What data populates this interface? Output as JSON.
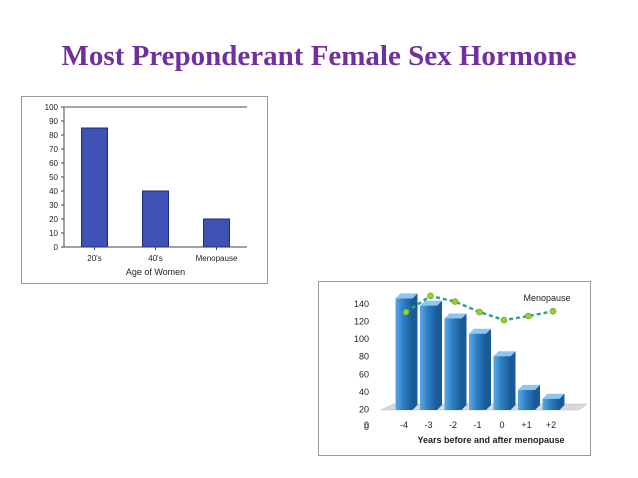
{
  "slide": {
    "title": "Most Preponderant Female Sex Hormone"
  },
  "chart_data": [
    {
      "type": "bar",
      "categories": [
        "20's",
        "40's",
        "Menopause"
      ],
      "values": [
        85,
        40,
        20
      ],
      "title": "",
      "xlabel": "Age of Women",
      "ylabel": "",
      "ylim": [
        0,
        100
      ],
      "yticks": [
        0,
        10,
        20,
        30,
        40,
        50,
        60,
        70,
        80,
        90,
        100
      ],
      "grid": false,
      "colors": {
        "bar": "#3f51b5",
        "edge": "#1f2c7a"
      }
    },
    {
      "type": "bar",
      "categories": [
        "-4",
        "-3",
        "-2",
        "-1",
        "0",
        "+1",
        "+2"
      ],
      "values": [
        147,
        138,
        122,
        103,
        75,
        33,
        22
      ],
      "line_series": {
        "name": "Menopause",
        "values": [
          130,
          150,
          143,
          130,
          120,
          125,
          131
        ]
      },
      "title": "",
      "xlabel": "Years before and after menopause",
      "ylabel": "",
      "ylim": [
        0,
        150
      ],
      "yticks_labels": [
        "0",
        "20",
        "40",
        "60",
        "80",
        "100",
        "120",
        "140"
      ],
      "grid": false,
      "legend": "top-right",
      "colors": {
        "bar": "#2e7fc4",
        "bar_dark": "#1a5a97",
        "line": "#2aa58a",
        "marker": "#9acd32"
      }
    }
  ]
}
